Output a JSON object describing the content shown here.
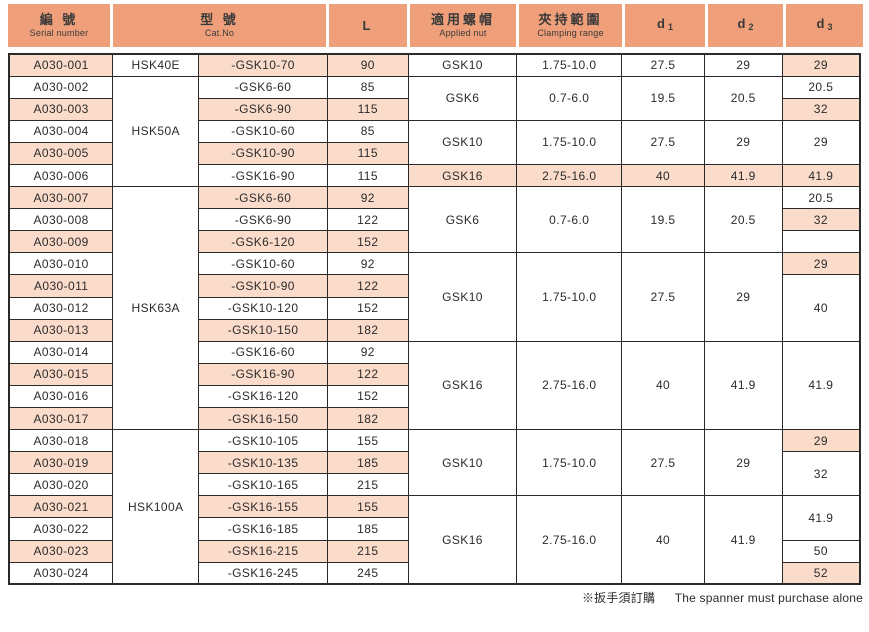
{
  "colors": {
    "header_bg": "#ef9f7a",
    "highlight_bg": "#fbdccb",
    "border": "#2a2a2a",
    "text": "#2b2b2b"
  },
  "header": {
    "columns": [
      {
        "key": "serial",
        "zh": "編 號",
        "en": "Serial number"
      },
      {
        "key": "catno",
        "zh": "型 號",
        "en": "Cat.No"
      },
      {
        "key": "l",
        "zh": "L",
        "en": ""
      },
      {
        "key": "nut",
        "zh": "適用螺帽",
        "en": "Applied nut"
      },
      {
        "key": "range",
        "zh": "夾持範圍",
        "en": "Clamping range"
      },
      {
        "key": "d1",
        "zh": "d",
        "sub": "1",
        "en": ""
      },
      {
        "key": "d2",
        "zh": "d",
        "sub": "2",
        "en": ""
      },
      {
        "key": "d3",
        "zh": "d",
        "sub": "3",
        "en": ""
      }
    ]
  },
  "table": {
    "rows": [
      {
        "cells": [
          {
            "col": "serial",
            "text": "A030-001",
            "pink": true
          },
          {
            "col": "hsk",
            "text": "HSK40E",
            "span": 1
          },
          {
            "col": "gsk",
            "text": "-GSK10-70",
            "pink": true
          },
          {
            "col": "l",
            "text": "90",
            "pink": true
          },
          {
            "col": "nut",
            "text": "GSK10",
            "span": 1
          },
          {
            "col": "range",
            "text": "1.75-10.0",
            "span": 1
          },
          {
            "col": "d1",
            "text": "27.5",
            "span": 1
          },
          {
            "col": "d2",
            "text": "29",
            "span": 1
          },
          {
            "col": "d3",
            "text": "29",
            "span": 1,
            "pink": true
          }
        ]
      },
      {
        "cells": [
          {
            "col": "serial",
            "text": "A030-002"
          },
          {
            "col": "hsk",
            "text": "HSK50A",
            "span": 5
          },
          {
            "col": "gsk",
            "text": "-GSK6-60"
          },
          {
            "col": "l",
            "text": "85"
          },
          {
            "col": "nut",
            "text": "GSK6",
            "span": 2
          },
          {
            "col": "range",
            "text": "0.7-6.0",
            "span": 2
          },
          {
            "col": "d1",
            "text": "19.5",
            "span": 2
          },
          {
            "col": "d2",
            "text": "20.5",
            "span": 2
          },
          {
            "col": "d3",
            "text": "20.5",
            "span": 1
          }
        ]
      },
      {
        "cells": [
          {
            "col": "serial",
            "text": "A030-003",
            "pink": true
          },
          {
            "col": "gsk",
            "text": "-GSK6-90",
            "pink": true
          },
          {
            "col": "l",
            "text": "115",
            "pink": true
          },
          {
            "col": "d3",
            "text": "32",
            "span": 1,
            "pink": true
          }
        ]
      },
      {
        "cells": [
          {
            "col": "serial",
            "text": "A030-004"
          },
          {
            "col": "gsk",
            "text": "-GSK10-60"
          },
          {
            "col": "l",
            "text": "85"
          },
          {
            "col": "nut",
            "text": "GSK10",
            "span": 2
          },
          {
            "col": "range",
            "text": "1.75-10.0",
            "span": 2
          },
          {
            "col": "d1",
            "text": "27.5",
            "span": 2
          },
          {
            "col": "d2",
            "text": "29",
            "span": 2
          },
          {
            "col": "d3",
            "text": "29",
            "span": 2
          }
        ]
      },
      {
        "cells": [
          {
            "col": "serial",
            "text": "A030-005",
            "pink": true
          },
          {
            "col": "gsk",
            "text": "-GSK10-90",
            "pink": true
          },
          {
            "col": "l",
            "text": "115",
            "pink": true
          }
        ]
      },
      {
        "cells": [
          {
            "col": "serial",
            "text": "A030-006"
          },
          {
            "col": "gsk",
            "text": "-GSK16-90"
          },
          {
            "col": "l",
            "text": "115"
          },
          {
            "col": "nut",
            "text": "GSK16",
            "span": 1,
            "pink": true
          },
          {
            "col": "range",
            "text": "2.75-16.0",
            "span": 1,
            "pink": true
          },
          {
            "col": "d1",
            "text": "40",
            "span": 1,
            "pink": true
          },
          {
            "col": "d2",
            "text": "41.9",
            "span": 1,
            "pink": true
          },
          {
            "col": "d3",
            "text": "41.9",
            "span": 1,
            "pink": true
          }
        ]
      },
      {
        "cells": [
          {
            "col": "serial",
            "text": "A030-007",
            "pink": true
          },
          {
            "col": "hsk",
            "text": "HSK63A",
            "span": 11
          },
          {
            "col": "gsk",
            "text": "-GSK6-60",
            "pink": true
          },
          {
            "col": "l",
            "text": "92",
            "pink": true
          },
          {
            "col": "nut",
            "text": "GSK6",
            "span": 3
          },
          {
            "col": "range",
            "text": "0.7-6.0",
            "span": 3
          },
          {
            "col": "d1",
            "text": "19.5",
            "span": 3
          },
          {
            "col": "d2",
            "text": "20.5",
            "span": 3
          },
          {
            "col": "d3",
            "text": "20.5",
            "span": 1
          }
        ]
      },
      {
        "cells": [
          {
            "col": "serial",
            "text": "A030-008"
          },
          {
            "col": "gsk",
            "text": "-GSK6-90"
          },
          {
            "col": "l",
            "text": "122"
          },
          {
            "col": "d3",
            "text": "32",
            "span": 1,
            "pink": true
          }
        ]
      },
      {
        "cells": [
          {
            "col": "serial",
            "text": "A030-009",
            "pink": true
          },
          {
            "col": "gsk",
            "text": "-GSK6-120",
            "pink": true
          },
          {
            "col": "l",
            "text": "152",
            "pink": true
          },
          {
            "col": "d3",
            "text": "",
            "span": 1
          }
        ]
      },
      {
        "cells": [
          {
            "col": "serial",
            "text": "A030-010"
          },
          {
            "col": "gsk",
            "text": "-GSK10-60"
          },
          {
            "col": "l",
            "text": "92"
          },
          {
            "col": "nut",
            "text": "GSK10",
            "span": 4
          },
          {
            "col": "range",
            "text": "1.75-10.0",
            "span": 4
          },
          {
            "col": "d1",
            "text": "27.5",
            "span": 4
          },
          {
            "col": "d2",
            "text": "29",
            "span": 4
          },
          {
            "col": "d3",
            "text": "29",
            "span": 1,
            "pink": true
          }
        ]
      },
      {
        "cells": [
          {
            "col": "serial",
            "text": "A030-011",
            "pink": true
          },
          {
            "col": "gsk",
            "text": "-GSK10-90",
            "pink": true
          },
          {
            "col": "l",
            "text": "122",
            "pink": true
          },
          {
            "col": "d3",
            "text": "40",
            "span": 3
          }
        ]
      },
      {
        "cells": [
          {
            "col": "serial",
            "text": "A030-012"
          },
          {
            "col": "gsk",
            "text": "-GSK10-120"
          },
          {
            "col": "l",
            "text": "152"
          }
        ]
      },
      {
        "cells": [
          {
            "col": "serial",
            "text": "A030-013",
            "pink": true
          },
          {
            "col": "gsk",
            "text": "-GSK10-150",
            "pink": true
          },
          {
            "col": "l",
            "text": "182",
            "pink": true
          }
        ]
      },
      {
        "cells": [
          {
            "col": "serial",
            "text": "A030-014"
          },
          {
            "col": "gsk",
            "text": "-GSK16-60"
          },
          {
            "col": "l",
            "text": "92"
          },
          {
            "col": "nut",
            "text": "GSK16",
            "span": 4
          },
          {
            "col": "range",
            "text": "2.75-16.0",
            "span": 4
          },
          {
            "col": "d1",
            "text": "40",
            "span": 4
          },
          {
            "col": "d2",
            "text": "41.9",
            "span": 4
          },
          {
            "col": "d3",
            "text": "41.9",
            "span": 4
          }
        ]
      },
      {
        "cells": [
          {
            "col": "serial",
            "text": "A030-015",
            "pink": true
          },
          {
            "col": "gsk",
            "text": "-GSK16-90",
            "pink": true
          },
          {
            "col": "l",
            "text": "122",
            "pink": true
          }
        ]
      },
      {
        "cells": [
          {
            "col": "serial",
            "text": "A030-016"
          },
          {
            "col": "gsk",
            "text": "-GSK16-120"
          },
          {
            "col": "l",
            "text": "152"
          }
        ]
      },
      {
        "cells": [
          {
            "col": "serial",
            "text": "A030-017",
            "pink": true
          },
          {
            "col": "gsk",
            "text": "-GSK16-150",
            "pink": true
          },
          {
            "col": "l",
            "text": "182",
            "pink": true
          }
        ]
      },
      {
        "cells": [
          {
            "col": "serial",
            "text": "A030-018"
          },
          {
            "col": "hsk",
            "text": "HSK100A",
            "span": 7
          },
          {
            "col": "gsk",
            "text": "-GSK10-105"
          },
          {
            "col": "l",
            "text": "155"
          },
          {
            "col": "nut",
            "text": "GSK10",
            "span": 3
          },
          {
            "col": "range",
            "text": "1.75-10.0",
            "span": 3
          },
          {
            "col": "d1",
            "text": "27.5",
            "span": 3
          },
          {
            "col": "d2",
            "text": "29",
            "span": 3
          },
          {
            "col": "d3",
            "text": "29",
            "span": 1,
            "pink": true
          }
        ]
      },
      {
        "cells": [
          {
            "col": "serial",
            "text": "A030-019",
            "pink": true
          },
          {
            "col": "gsk",
            "text": "-GSK10-135",
            "pink": true
          },
          {
            "col": "l",
            "text": "185",
            "pink": true
          },
          {
            "col": "d3",
            "text": "32",
            "span": 2
          }
        ]
      },
      {
        "cells": [
          {
            "col": "serial",
            "text": "A030-020"
          },
          {
            "col": "gsk",
            "text": "-GSK10-165"
          },
          {
            "col": "l",
            "text": "215"
          }
        ]
      },
      {
        "cells": [
          {
            "col": "serial",
            "text": "A030-021",
            "pink": true
          },
          {
            "col": "gsk",
            "text": "-GSK16-155",
            "pink": true
          },
          {
            "col": "l",
            "text": "155",
            "pink": true
          },
          {
            "col": "nut",
            "text": "GSK16",
            "span": 4
          },
          {
            "col": "range",
            "text": "2.75-16.0",
            "span": 4
          },
          {
            "col": "d1",
            "text": "40",
            "span": 4
          },
          {
            "col": "d2",
            "text": "41.9",
            "span": 4
          },
          {
            "col": "d3",
            "text": "41.9",
            "span": 2
          }
        ]
      },
      {
        "cells": [
          {
            "col": "serial",
            "text": "A030-022"
          },
          {
            "col": "gsk",
            "text": "-GSK16-185"
          },
          {
            "col": "l",
            "text": "185"
          }
        ]
      },
      {
        "cells": [
          {
            "col": "serial",
            "text": "A030-023",
            "pink": true
          },
          {
            "col": "gsk",
            "text": "-GSK16-215",
            "pink": true
          },
          {
            "col": "l",
            "text": "215",
            "pink": true
          },
          {
            "col": "d3",
            "text": "50",
            "span": 1
          }
        ]
      },
      {
        "cells": [
          {
            "col": "serial",
            "text": "A030-024"
          },
          {
            "col": "gsk",
            "text": "-GSK16-245"
          },
          {
            "col": "l",
            "text": "245"
          },
          {
            "col": "d3",
            "text": "52",
            "span": 1,
            "pink": true
          }
        ]
      }
    ]
  },
  "footnote": {
    "zh": "※扳手須訂購",
    "en": "The spanner must purchase alone"
  }
}
